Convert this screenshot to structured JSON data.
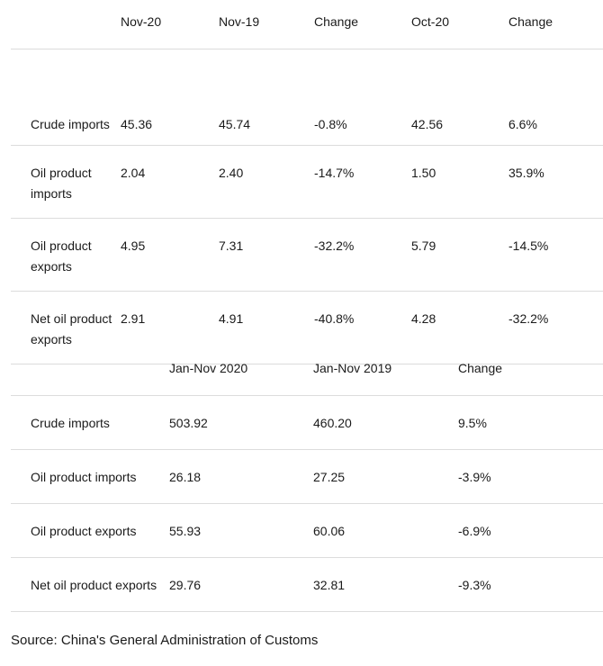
{
  "monthly_table": {
    "headers": [
      "",
      "Nov-20",
      "Nov-19",
      "Change",
      "Oct-20",
      "Change"
    ],
    "rows": [
      [
        "Crude imports",
        "45.36",
        "45.74",
        "-0.8%",
        "42.56",
        "6.6%"
      ],
      [
        "Oil product imports",
        "2.04",
        "2.40",
        "-14.7%",
        "1.50",
        "35.9%"
      ],
      [
        "Oil product exports",
        "4.95",
        "7.31",
        "-32.2%",
        "5.79",
        "-14.5%"
      ],
      [
        "Net oil product exports",
        "2.91",
        "4.91",
        "-40.8%",
        "4.28",
        "-32.2%"
      ]
    ]
  },
  "ytd_table": {
    "headers": [
      "",
      "Jan-Nov 2020",
      "Jan-Nov 2019",
      "Change"
    ],
    "rows": [
      [
        "Crude imports",
        "503.92",
        "460.20",
        "9.5%"
      ],
      [
        "Oil product imports",
        "26.18",
        "27.25",
        "-3.9%"
      ],
      [
        "Oil product exports",
        "55.93",
        "60.06",
        "-6.9%"
      ],
      [
        "Net oil product exports",
        "29.76",
        "32.81",
        "-9.3%"
      ]
    ]
  },
  "source": "Source: China's General Administration of Customs"
}
